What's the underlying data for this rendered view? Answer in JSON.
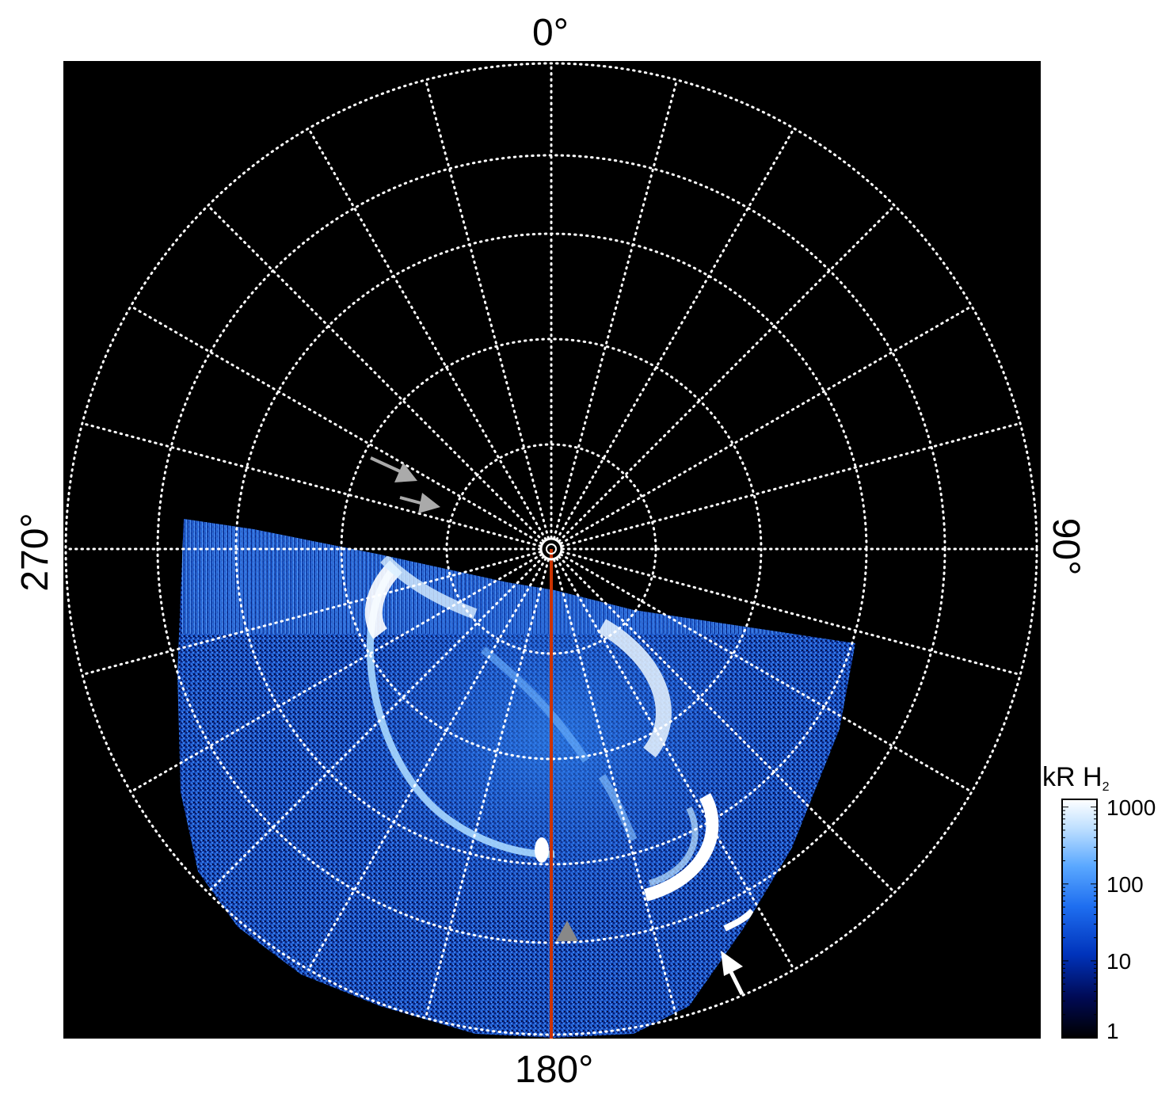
{
  "figure": {
    "azimuth_labels": {
      "top": "0°",
      "right": "90°",
      "bottom": "180°",
      "left": "270°"
    },
    "colorbar": {
      "title_main": "kR H",
      "title_sub": "2",
      "ticks": [
        "1000",
        "100",
        "10",
        "1"
      ],
      "scale": "log",
      "colors": [
        "#000000",
        "#000a55",
        "#0033bb",
        "#1e6ef0",
        "#5aa8ff",
        "#bfe0ff",
        "#ffffff"
      ]
    },
    "image": {
      "background": "#000000",
      "grid_color": "#ffffff",
      "grid_style": "dotted",
      "meridian_line_color": "#cc3300",
      "aurora_colors": [
        "#0a1e8c",
        "#1e5ad2",
        "#3c8cff",
        "#9fd2ff",
        "#ffffff"
      ],
      "arrow_gray": "#aaaaaa",
      "arrow_white": "#ffffff"
    }
  }
}
